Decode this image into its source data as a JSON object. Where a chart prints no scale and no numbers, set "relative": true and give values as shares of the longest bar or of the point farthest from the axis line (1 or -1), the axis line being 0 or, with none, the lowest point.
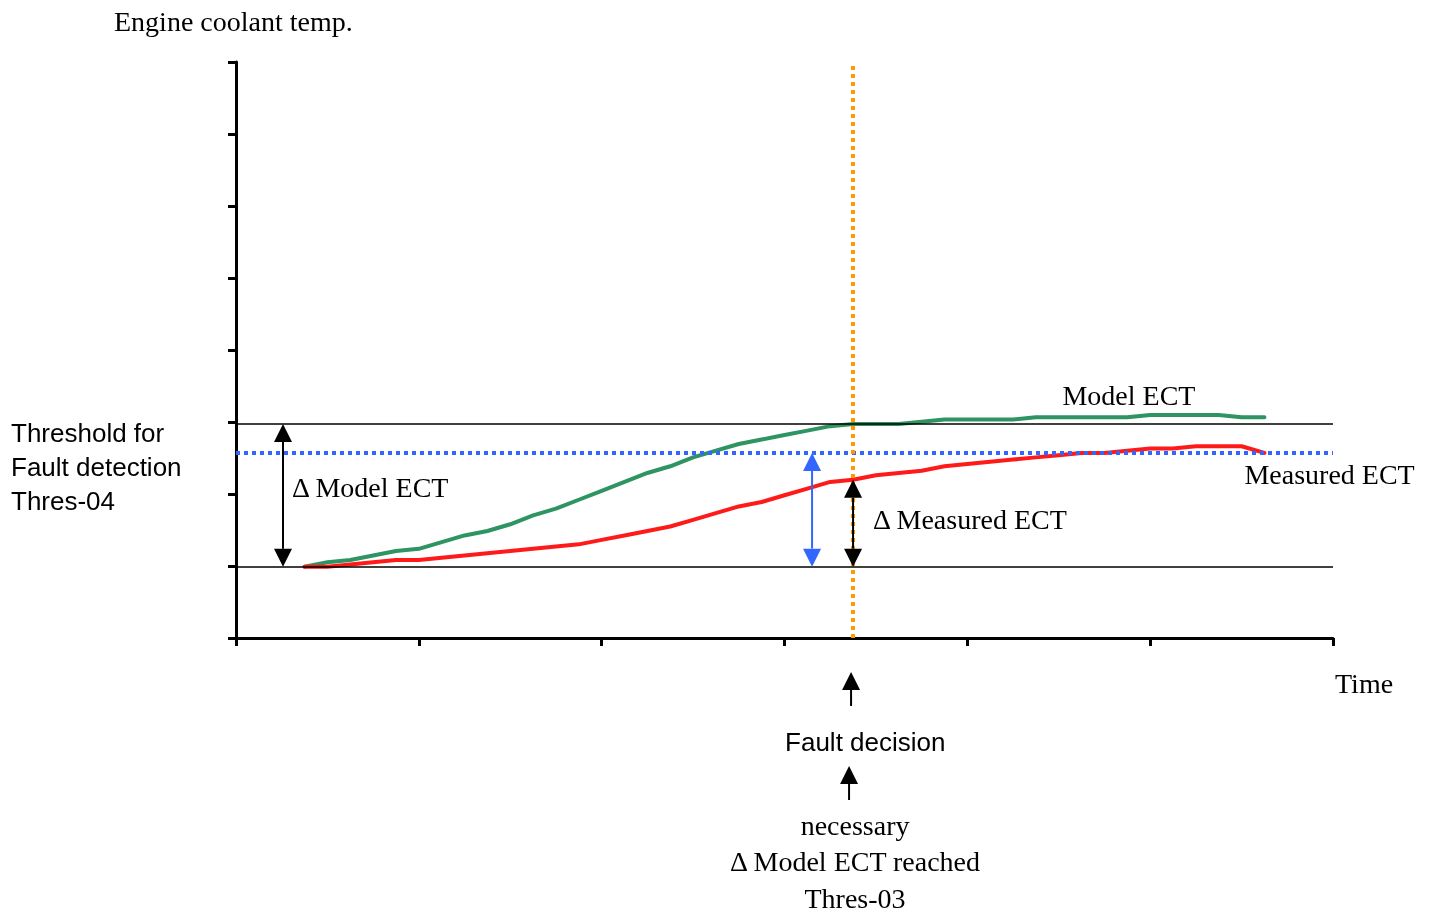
{
  "chart_data": {
    "type": "line",
    "relative": true,
    "xlabel": "Time",
    "categories": [
      null,
      null,
      null,
      null,
      null,
      null,
      null,
      null,
      null,
      null,
      null,
      null,
      null,
      null,
      null,
      null,
      null,
      null,
      null,
      null,
      null,
      null,
      null,
      null,
      null,
      null,
      null,
      null,
      null,
      null,
      null,
      null,
      null,
      null,
      null,
      null,
      null,
      null,
      null,
      null,
      null,
      null,
      null,
      null,
      null,
      null,
      null,
      null,
      null
    ],
    "grid": false,
    "legend": false,
    "marker": "none",
    "line_style": "solid",
    "series": [
      {
        "name": "Model ECT",
        "color": "#2e9462",
        "values": [
          null,
          null,
          null,
          0.32,
          0.34,
          0.35,
          0.37,
          0.39,
          0.4,
          0.43,
          0.46,
          0.48,
          0.51,
          0.55,
          0.58,
          0.62,
          0.66,
          0.7,
          0.74,
          0.77,
          0.81,
          0.84,
          0.87,
          0.89,
          0.91,
          0.93,
          0.95,
          0.96,
          0.96,
          0.96,
          0.97,
          0.98,
          0.98,
          0.98,
          0.98,
          0.99,
          0.99,
          0.99,
          0.99,
          0.99,
          1.0,
          1.0,
          1.0,
          1.0,
          0.99,
          0.99,
          null,
          null,
          null
        ]
      },
      {
        "name": "Measured ECT",
        "color": "#ff1a1a",
        "values": [
          null,
          null,
          null,
          0.32,
          0.32,
          0.33,
          0.34,
          0.35,
          0.35,
          0.36,
          0.37,
          0.38,
          0.39,
          0.4,
          0.41,
          0.42,
          0.44,
          0.46,
          0.48,
          0.5,
          0.53,
          0.56,
          0.59,
          0.61,
          0.64,
          0.67,
          0.7,
          0.71,
          0.73,
          0.74,
          0.75,
          0.77,
          0.78,
          0.79,
          0.8,
          0.81,
          0.82,
          0.83,
          0.83,
          0.84,
          0.85,
          0.85,
          0.86,
          0.86,
          0.86,
          0.83,
          null,
          null,
          null
        ]
      }
    ],
    "ref_lines": [
      {
        "axis": "y",
        "value": 0.32,
        "label": null,
        "color": "#000000",
        "line_style": "solid"
      },
      {
        "axis": "y",
        "value": 0.96,
        "label": null,
        "color": "#000000",
        "line_style": "solid"
      },
      {
        "axis": "y",
        "value": 0.83,
        "label": "Threshold for\nFault detection\nThres-04",
        "color": "#3366ff",
        "line_style": "dotted"
      },
      {
        "axis": "x",
        "label": "Fault decision",
        "color": "#ff9900",
        "line_style": "dotted"
      }
    ],
    "annotations": [
      "Engine coolant temp.",
      "Δ Model ECT",
      "Δ Measured ECT",
      "necessary\nΔ Model ECT reached\nThres-03"
    ]
  }
}
